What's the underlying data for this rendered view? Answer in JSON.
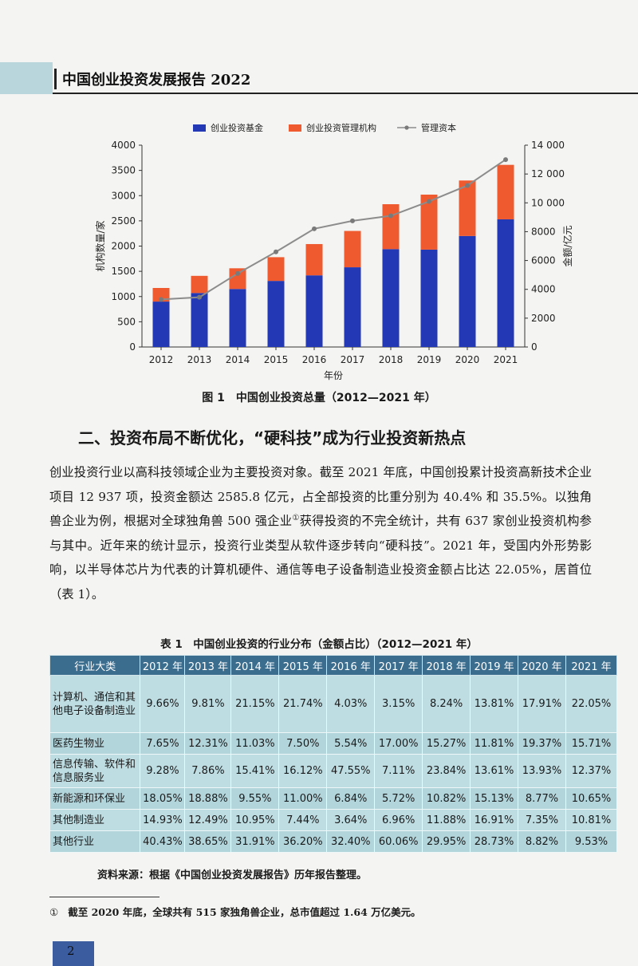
{
  "header": {
    "title": "中国创业投资发展报告 2022"
  },
  "figure": {
    "caption": "图 1　中国创业投资总量（2012—2021 年）"
  },
  "chart_data": {
    "type": "bar",
    "stacked": true,
    "categories": [
      "2012",
      "2013",
      "2014",
      "2015",
      "2016",
      "2017",
      "2018",
      "2019",
      "2020",
      "2021"
    ],
    "series": [
      {
        "name": "创业投资基金",
        "kind": "bar",
        "axis": "left",
        "color": "#2338b4",
        "values": [
          900,
          1070,
          1150,
          1310,
          1420,
          1580,
          1940,
          1930,
          2200,
          2530
        ]
      },
      {
        "name": "创业投资管理机构",
        "kind": "bar",
        "axis": "left",
        "color": "#ef5a2f",
        "values": [
          270,
          340,
          410,
          470,
          620,
          720,
          890,
          1090,
          1100,
          1080
        ]
      },
      {
        "name": "管理资本",
        "kind": "line",
        "axis": "right",
        "color": "#8c8c8c",
        "values": [
          3300,
          3450,
          5100,
          6600,
          8200,
          8750,
          9100,
          10100,
          11200,
          13000
        ]
      }
    ],
    "xlabel": "年份",
    "ylabel": "机构数量/家",
    "y2label": "金额/亿元",
    "ylim": [
      0,
      4000
    ],
    "y2lim": [
      0,
      14000
    ],
    "yticks": [
      "0",
      "500",
      "1000",
      "1500",
      "2000",
      "2500",
      "3000",
      "3500",
      "4000"
    ],
    "y2ticks": [
      "0",
      "2000",
      "4000",
      "6000",
      "8000",
      "10 000",
      "12 000",
      "14 000"
    ],
    "legend": "top-center",
    "grid": false
  },
  "section": {
    "title": "二、投资布局不断优化，“硬科技”成为行业投资新热点"
  },
  "body": {
    "p1a": "创业投资行业以高科技领域企业为主要投资对象。截至 2021 年底，中国创投累计投资高新技术企业项目 12 937 项，投资金额达 2585.8 亿元，占全部投资的比重分别为 40.4% 和 35.5%。以独角兽企业为例，根据对全球独角兽 500 强企业",
    "fnref": "①",
    "p1b": "获得投资的不完全统计，共有 637 家创业投资机构参与其中。近年来的统计显示，投资行业类型从软件逐步转向“硬科技”。2021 年，受国内外形势影响，以半导体芯片为代表的计算机硬件、通信等电子设备制造业投资金额占比达 22.05%，居首位（表 1）。"
  },
  "table": {
    "caption": "表 1　中国创业投资的行业分布（金额占比）（2012—2021 年）",
    "headers": [
      "行业大类",
      "2012 年",
      "2013 年",
      "2014 年",
      "2015 年",
      "2016 年",
      "2017 年",
      "2018 年",
      "2019 年",
      "2020 年",
      "2021 年"
    ],
    "rows": [
      [
        "计算机、通信和其他电子设备制造业",
        "9.66%",
        "9.81%",
        "21.15%",
        "21.74%",
        "4.03%",
        "3.15%",
        "8.24%",
        "13.81%",
        "17.91%",
        "22.05%"
      ],
      [
        "医药生物业",
        "7.65%",
        "12.31%",
        "11.03%",
        "7.50%",
        "5.54%",
        "17.00%",
        "15.27%",
        "11.81%",
        "19.37%",
        "15.71%"
      ],
      [
        "信息传输、软件和信息服务业",
        "9.28%",
        "7.86%",
        "15.41%",
        "16.12%",
        "47.55%",
        "7.11%",
        "23.84%",
        "13.61%",
        "13.93%",
        "12.37%"
      ],
      [
        "新能源和环保业",
        "18.05%",
        "18.88%",
        "9.55%",
        "11.00%",
        "6.84%",
        "5.72%",
        "10.82%",
        "15.13%",
        "8.77%",
        "10.65%"
      ],
      [
        "其他制造业",
        "14.93%",
        "12.49%",
        "10.95%",
        "7.44%",
        "3.64%",
        "6.96%",
        "11.88%",
        "16.91%",
        "7.35%",
        "10.81%"
      ],
      [
        "其他行业",
        "40.43%",
        "38.65%",
        "31.91%",
        "36.20%",
        "32.40%",
        "60.06%",
        "29.95%",
        "28.73%",
        "8.82%",
        "9.53%"
      ]
    ],
    "source": "资料来源：根据《中国创业投资发展报告》历年报告整理。"
  },
  "footnote": {
    "mark": "①",
    "text": "截至 2020 年底，全球共有 515 家独角兽企业，总市值超过 1.64 万亿美元。"
  },
  "page": {
    "number": "2"
  }
}
